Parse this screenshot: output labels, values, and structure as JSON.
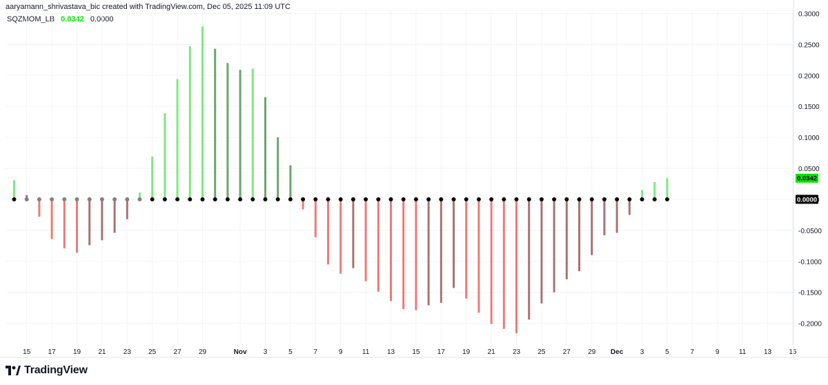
{
  "attribution": "aaryamann_shrivastava_bic created with TradingView.com, Dec 05, 2025 11:09 UTC",
  "legend": {
    "name": "SQZMOM_LB",
    "value1": "0.0342",
    "value2": "0.0000"
  },
  "logo": {
    "text": "TradingView"
  },
  "colors": {
    "lime": "#7ee87e",
    "dark_green": "#6aa56a",
    "red": "#f07878",
    "maroon": "#a87272",
    "gray": "#808080",
    "dot": "#000000",
    "price_label_green": "#00e600",
    "grid": "#f0f3fa"
  },
  "chart_data": {
    "type": "bar",
    "ylim": [
      -0.235,
      0.305
    ],
    "y_ticks": [
      "0.3000",
      "0.2500",
      "0.2000",
      "0.1500",
      "0.1000",
      "0.0500",
      "0.0000",
      "-0.0500",
      "-0.1000",
      "-0.1500",
      "-0.2000"
    ],
    "y_tick_values": [
      0.3,
      0.25,
      0.2,
      0.15,
      0.1,
      0.05,
      0,
      -0.05,
      -0.1,
      -0.15,
      -0.2
    ],
    "price_labels": [
      {
        "text": "0.0342",
        "value": 0.0342,
        "bg": "#00e600",
        "fg": "#000000"
      },
      {
        "text": "0.0000",
        "value": 0.0,
        "bg": "#000000",
        "fg": "#ffffff"
      }
    ],
    "x_ticks": [
      {
        "label": "15",
        "index": 1
      },
      {
        "label": "17",
        "index": 3
      },
      {
        "label": "19",
        "index": 5
      },
      {
        "label": "21",
        "index": 7
      },
      {
        "label": "23",
        "index": 9
      },
      {
        "label": "25",
        "index": 11
      },
      {
        "label": "27",
        "index": 13
      },
      {
        "label": "29",
        "index": 15
      },
      {
        "label": "Nov",
        "index": 18
      },
      {
        "label": "3",
        "index": 20
      },
      {
        "label": "5",
        "index": 22
      },
      {
        "label": "7",
        "index": 24
      },
      {
        "label": "9",
        "index": 26
      },
      {
        "label": "11",
        "index": 28
      },
      {
        "label": "13",
        "index": 30
      },
      {
        "label": "15",
        "index": 32
      },
      {
        "label": "17",
        "index": 34
      },
      {
        "label": "19",
        "index": 36
      },
      {
        "label": "21",
        "index": 38
      },
      {
        "label": "23",
        "index": 40
      },
      {
        "label": "25",
        "index": 42
      },
      {
        "label": "27",
        "index": 44
      },
      {
        "label": "29",
        "index": 46
      },
      {
        "label": "Dec",
        "index": 48
      },
      {
        "label": "3",
        "index": 50
      },
      {
        "label": "5",
        "index": 52
      },
      {
        "label": "7",
        "index": 54
      },
      {
        "label": "9",
        "index": 56
      },
      {
        "label": "11",
        "index": 58
      },
      {
        "label": "13",
        "index": 60
      },
      {
        "label": "15",
        "index": 62
      }
    ],
    "bar_count_axis": 63,
    "series": [
      {
        "values": [
          0.031,
          0.007,
          -0.028,
          -0.064,
          -0.079,
          -0.086,
          -0.074,
          -0.066,
          -0.054,
          -0.032,
          0.011,
          0.069,
          0.139,
          0.194,
          0.247,
          0.279,
          0.243,
          0.22,
          0.209,
          0.211,
          0.165,
          0.1,
          0.055,
          -0.016,
          -0.061,
          -0.105,
          -0.12,
          -0.111,
          -0.132,
          -0.149,
          -0.164,
          -0.177,
          -0.179,
          -0.171,
          -0.167,
          -0.143,
          -0.16,
          -0.183,
          -0.201,
          -0.209,
          -0.216,
          -0.194,
          -0.168,
          -0.15,
          -0.129,
          -0.116,
          -0.09,
          -0.058,
          -0.054,
          -0.025,
          0.015,
          0.028,
          0.0342
        ],
        "colors": [
          "lime",
          "gray",
          "red",
          "red",
          "red",
          "red",
          "maroon",
          "maroon",
          "maroon",
          "maroon",
          "lime",
          "lime",
          "lime",
          "lime",
          "lime",
          "lime",
          "dark_green",
          "dark_green",
          "dark_green",
          "lime",
          "dark_green",
          "dark_green",
          "dark_green",
          "red",
          "red",
          "red",
          "red",
          "maroon",
          "red",
          "red",
          "red",
          "red",
          "red",
          "maroon",
          "maroon",
          "maroon",
          "red",
          "red",
          "red",
          "red",
          "red",
          "maroon",
          "maroon",
          "maroon",
          "maroon",
          "maroon",
          "maroon",
          "maroon",
          "maroon",
          "maroon",
          "lime",
          "lime",
          "lime"
        ],
        "dot_colors": [
          "dot",
          "gray",
          "gray",
          "gray",
          "gray",
          "gray",
          "gray",
          "gray",
          "gray",
          "gray",
          "gray",
          "dot",
          "dot",
          "dot",
          "dot",
          "dot",
          "dot",
          "dot",
          "dot",
          "dot",
          "dot",
          "dot",
          "dot",
          "dot",
          "dot",
          "dot",
          "dot",
          "dot",
          "dot",
          "dot",
          "dot",
          "dot",
          "dot",
          "dot",
          "dot",
          "dot",
          "dot",
          "dot",
          "dot",
          "dot",
          "dot",
          "dot",
          "dot",
          "dot",
          "dot",
          "dot",
          "dot",
          "dot",
          "dot",
          "dot",
          "dot",
          "dot",
          "dot"
        ]
      }
    ]
  }
}
